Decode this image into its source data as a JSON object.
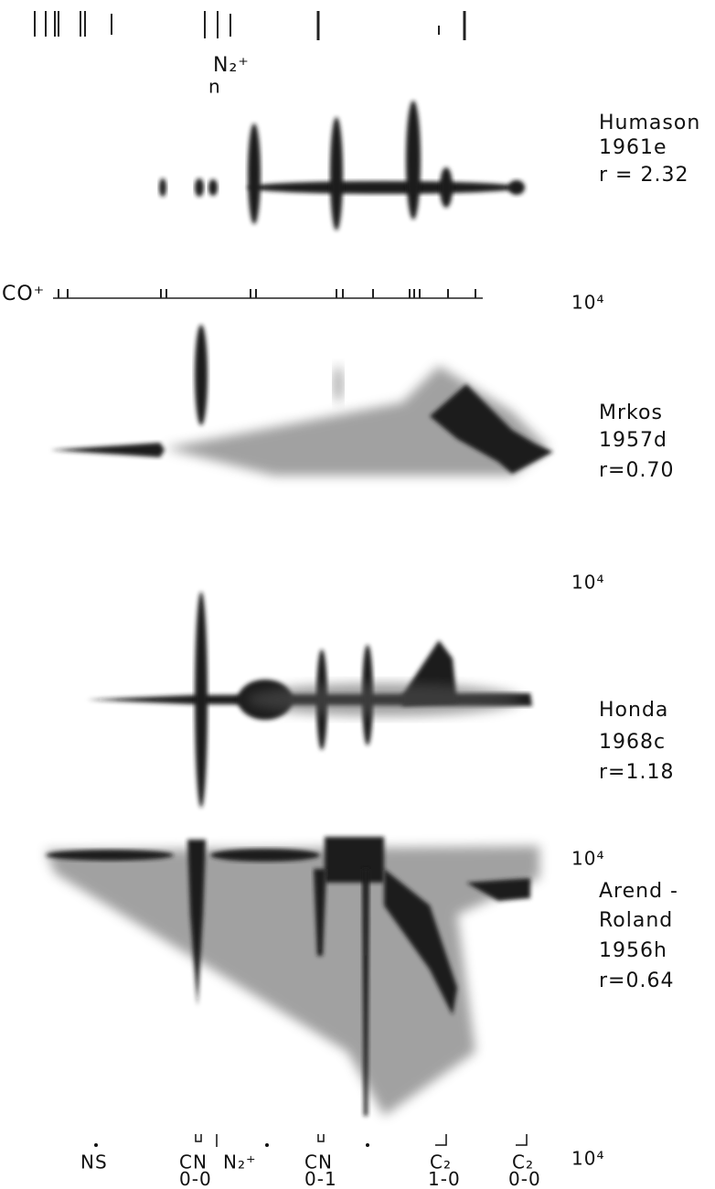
{
  "top_label": {
    "ion": "N₂⁺",
    "note": "n"
  },
  "co_label": "CO⁺",
  "spectra": [
    {
      "lines": [
        "Humason",
        "1961e"
      ],
      "r": "r = 2.32"
    },
    {
      "lines": [
        "Mrkos",
        "1957d"
      ],
      "r": "r=0.70"
    },
    {
      "lines": [
        "Honda",
        "1968c"
      ],
      "r": "r=1.18"
    },
    {
      "lines": [
        "Arend -",
        "Roland",
        "1956h"
      ],
      "r": "r=0.64"
    }
  ],
  "scale_labels": [
    "10⁴",
    "10⁴",
    "10⁴",
    "10⁴"
  ],
  "bottom_labels": [
    {
      "line1": "NS"
    },
    {
      "line1": "CN",
      "line2": "0-0"
    },
    {
      "line1": "N₂⁺"
    },
    {
      "line1": "CN",
      "line2": "0-1"
    },
    {
      "line1": "C₂",
      "line2": "1-0"
    },
    {
      "line1": "C₂",
      "line2": "0-0"
    }
  ]
}
